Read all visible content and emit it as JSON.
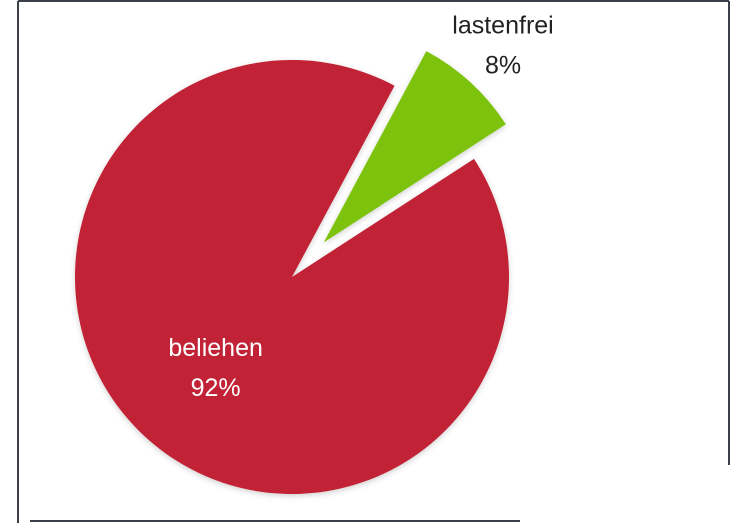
{
  "chart_data": {
    "type": "pie",
    "title": "",
    "categories": [
      "beliehen",
      "lastenfrei"
    ],
    "values": [
      92,
      8
    ],
    "value_labels": [
      "92%",
      "8%"
    ],
    "colors": [
      "#c12335",
      "#7dc20a"
    ],
    "exploded_slice": "lastenfrei",
    "legend": "none",
    "label_placement": [
      "inside",
      "outside"
    ]
  }
}
